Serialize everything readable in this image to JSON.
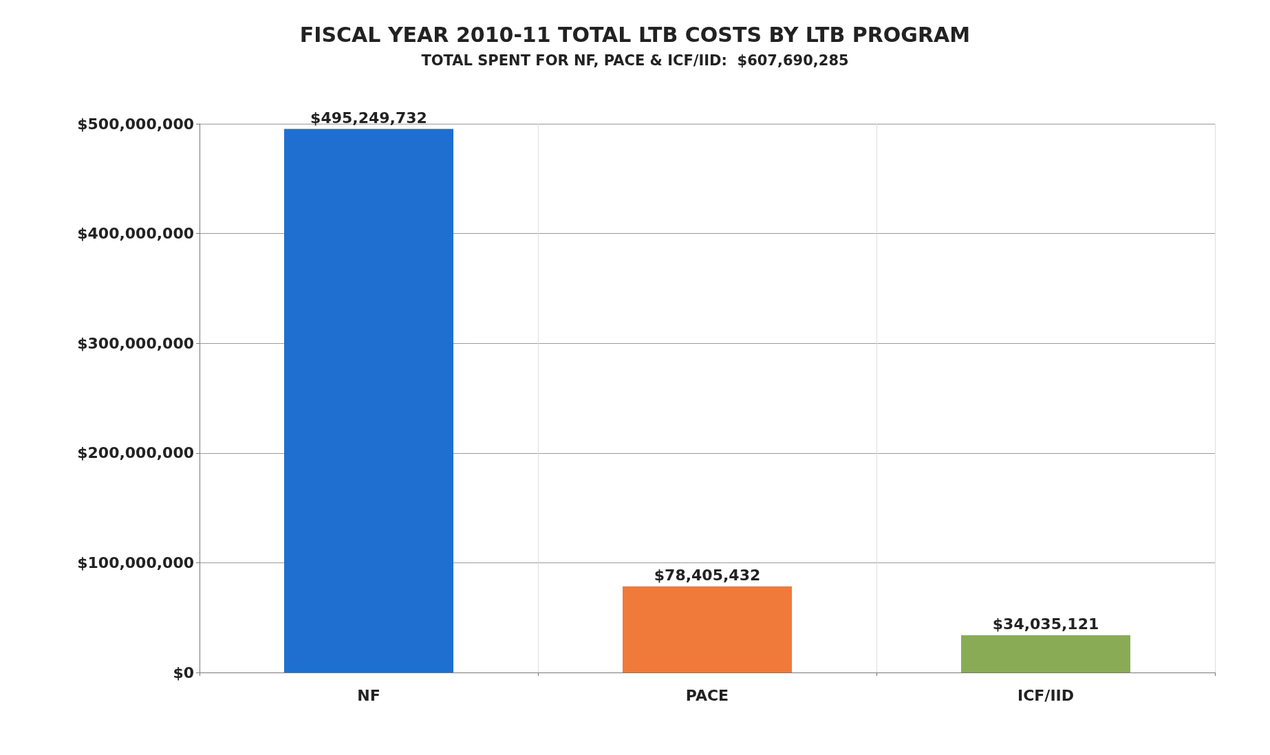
{
  "chart_data": {
    "type": "bar",
    "title": "FISCAL YEAR 2010-11 TOTAL LTB COSTS BY LTB PROGRAM",
    "subtitle": "TOTAL SPENT FOR NF, PACE & ICF/IID:  $607,690,285",
    "categories": [
      "NF",
      "PACE",
      "ICF/IID"
    ],
    "values": [
      495249732,
      78405432,
      34035121
    ],
    "colors": [
      "#1f6fd0",
      "#f07a3a",
      "#8aab55"
    ],
    "value_labels": [
      "$495,249,732",
      "$78,405,432",
      "$34,035,121"
    ],
    "ylim": [
      0,
      500000000
    ],
    "yticks": [
      {
        "value": 0,
        "label": "$0"
      },
      {
        "value": 100000000,
        "label": "$100,000,000"
      },
      {
        "value": 200000000,
        "label": "$200,000,000"
      },
      {
        "value": 300000000,
        "label": "$300,000,000"
      },
      {
        "value": 400000000,
        "label": "$400,000,000"
      },
      {
        "value": 500000000,
        "label": "$500,000,000"
      }
    ],
    "grid": true
  }
}
